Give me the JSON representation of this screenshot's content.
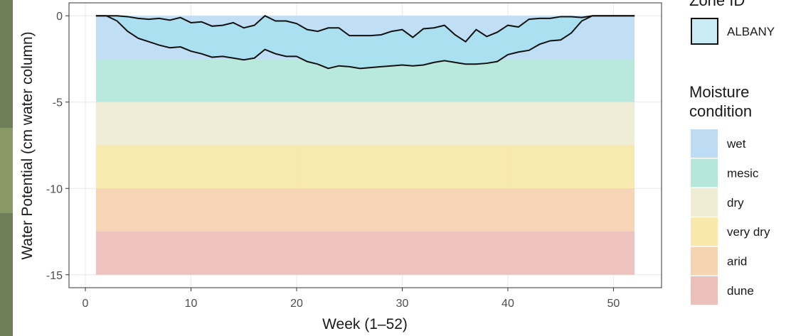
{
  "chart_data": {
    "type": "ribbon",
    "x_label": "Week (1–52)",
    "y_label": "Water Potential (cm water column)",
    "x": [
      1,
      2,
      3,
      4,
      5,
      6,
      7,
      8,
      9,
      10,
      11,
      12,
      13,
      14,
      15,
      16,
      17,
      18,
      19,
      20,
      21,
      22,
      23,
      24,
      25,
      26,
      27,
      28,
      29,
      30,
      31,
      32,
      33,
      34,
      35,
      36,
      37,
      38,
      39,
      40,
      41,
      42,
      43,
      44,
      45,
      46,
      47,
      48,
      49,
      50,
      51,
      52
    ],
    "series": [
      {
        "name": "ALBANY",
        "color": "#a6e1ef",
        "line_color": "#111111",
        "upper": [
          0,
          0,
          0,
          -0.05,
          -0.15,
          -0.2,
          -0.15,
          -0.25,
          -0.1,
          -0.4,
          -0.35,
          -0.6,
          -0.55,
          -0.4,
          -0.7,
          -0.55,
          0,
          -0.3,
          -0.3,
          -0.45,
          -0.8,
          -0.9,
          -0.7,
          -0.7,
          -1.15,
          -1.15,
          -1.15,
          -1.1,
          -0.9,
          -0.8,
          -1.25,
          -0.75,
          -0.7,
          -0.55,
          -1.1,
          -1.5,
          -0.8,
          -1.2,
          -0.95,
          -0.55,
          -0.65,
          -0.2,
          -0.15,
          -0.15,
          -0.05,
          -0.05,
          -0.1,
          0,
          0,
          0,
          0,
          0
        ],
        "lower": [
          0,
          0,
          -0.3,
          -0.9,
          -1.3,
          -1.5,
          -1.7,
          -1.85,
          -1.8,
          -2.05,
          -2.2,
          -2.4,
          -2.35,
          -2.45,
          -2.55,
          -2.45,
          -1.95,
          -2.2,
          -2.35,
          -2.35,
          -2.65,
          -2.8,
          -3.05,
          -2.9,
          -2.95,
          -3.05,
          -3.0,
          -2.95,
          -2.9,
          -2.85,
          -2.9,
          -2.85,
          -2.7,
          -2.6,
          -2.7,
          -2.8,
          -2.8,
          -2.75,
          -2.65,
          -2.25,
          -2.1,
          -2.0,
          -1.65,
          -1.45,
          -1.4,
          -1.0,
          -0.3,
          0,
          0,
          0,
          0,
          0
        ]
      }
    ],
    "bands": [
      {
        "name": "wet",
        "color": "#bddcf3",
        "ymin": -2.5,
        "ymax": 0
      },
      {
        "name": "mesic",
        "color": "#b5e7da",
        "ymin": -5,
        "ymax": -2.5
      },
      {
        "name": "dry",
        "color": "#eeecd3",
        "ymin": -7.5,
        "ymax": -5
      },
      {
        "name": "very dry",
        "color": "#f8e8aa",
        "ymin": -10,
        "ymax": -7.5
      },
      {
        "name": "arid",
        "color": "#f5d4b2",
        "ymin": -12.5,
        "ymax": -10
      },
      {
        "name": "dune",
        "color": "#edbfbb",
        "ymin": -15,
        "ymax": -12.5
      }
    ],
    "legend_titles": [
      "Zone ID",
      "Moisture condition"
    ],
    "xlim": [
      -1.55,
      54.55
    ],
    "xticks": [
      0,
      10,
      20,
      30,
      40,
      50
    ],
    "ylim": [
      -15.75,
      0.75
    ],
    "yticks": [
      0,
      -5,
      -10,
      -15
    ],
    "grid": true,
    "legend": "right"
  }
}
